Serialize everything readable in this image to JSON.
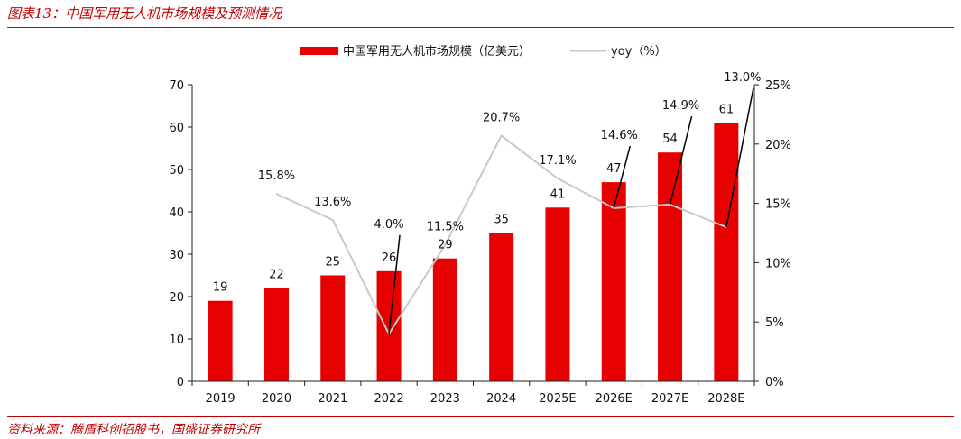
{
  "header": {
    "title": "图表13：中国军用无人机市场规模及预测情况"
  },
  "footer": {
    "source": "资料来源：腾盾科创招股书，国盛证券研究所"
  },
  "chart_data": {
    "type": "bar",
    "categories": [
      "2019",
      "2020",
      "2021",
      "2022",
      "2023",
      "2024",
      "2025E",
      "2026E",
      "2027E",
      "2028E"
    ],
    "series": [
      {
        "name": "中国军用无人机市场规模（亿美元）",
        "type": "bar",
        "axis": "left",
        "color": "#e60000",
        "values": [
          19,
          22,
          25,
          26,
          29,
          35,
          41,
          47,
          54,
          61
        ],
        "labels": [
          "19",
          "22",
          "25",
          "26",
          "29",
          "35",
          "41",
          "47",
          "54",
          "61"
        ]
      },
      {
        "name": "yoy（%）",
        "type": "line",
        "axis": "right",
        "color": "#c8c8c8",
        "values": [
          null,
          15.8,
          13.6,
          4.0,
          11.5,
          20.7,
          17.1,
          14.6,
          14.9,
          13.0
        ],
        "labels": [
          "",
          "15.8%",
          "13.6%",
          "4.0%",
          "11.5%",
          "20.7%",
          "17.1%",
          "14.6%",
          "14.9%",
          "13.0%"
        ]
      }
    ],
    "y_left": {
      "min": 0,
      "max": 70,
      "ticks": [
        "0",
        "10",
        "20",
        "30",
        "40",
        "50",
        "60",
        "70"
      ]
    },
    "y_right": {
      "min": 0,
      "max": 25,
      "ticks": [
        "0%",
        "5%",
        "10%",
        "15%",
        "20%",
        "25%"
      ]
    },
    "legend": [
      "中国军用无人机市场规模（亿美元）",
      "yoy（%）"
    ],
    "legend_position": "top",
    "grid": false
  }
}
